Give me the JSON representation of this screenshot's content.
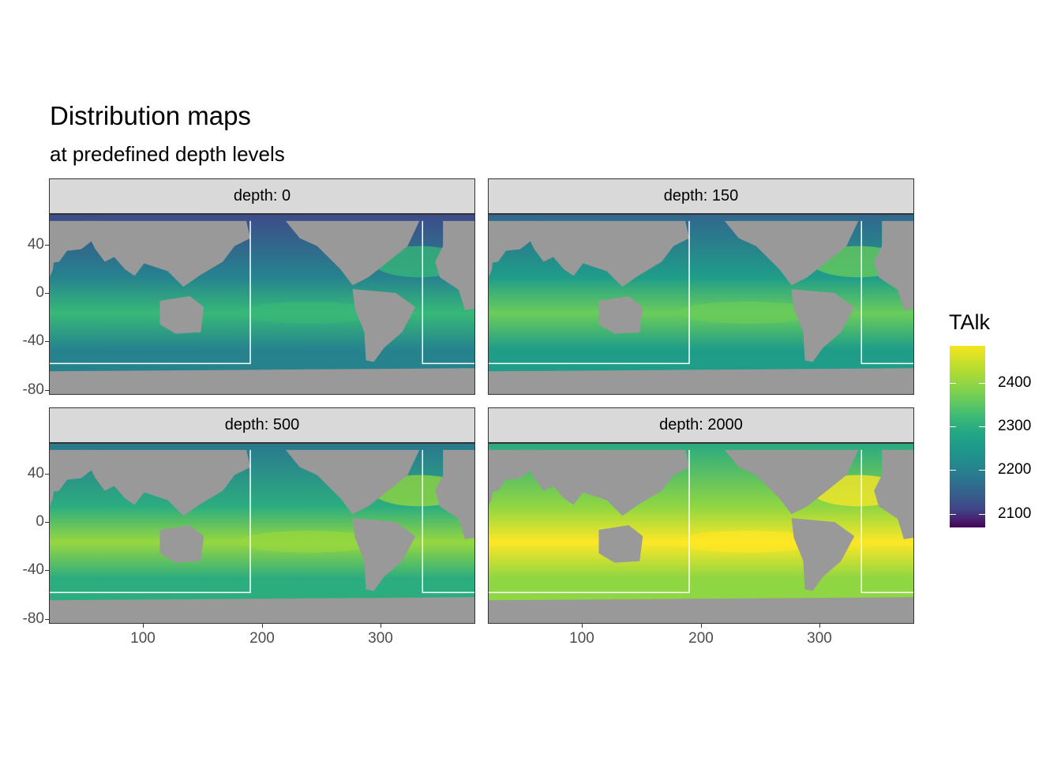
{
  "header": {
    "title": "Distribution maps",
    "subtitle": "at predefined depth levels"
  },
  "panels": [
    {
      "label": "depth: 0",
      "relative_level": 0.45
    },
    {
      "label": "depth: 150",
      "relative_level": 0.55
    },
    {
      "label": "depth: 500",
      "relative_level": 0.62
    },
    {
      "label": "depth: 2000",
      "relative_level": 0.83
    }
  ],
  "axes": {
    "y_ticks": [
      "40",
      "0",
      "-40",
      "-80"
    ],
    "x_ticks": [
      "100",
      "200",
      "300"
    ]
  },
  "legend": {
    "title": "TAlk",
    "labels": [
      "2400",
      "2300",
      "2200",
      "2100"
    ],
    "colors": {
      "high": "#fde725",
      "mid": "#21908d",
      "low": "#440154",
      "land": "#999999",
      "missing": "#ffffff"
    }
  }
}
